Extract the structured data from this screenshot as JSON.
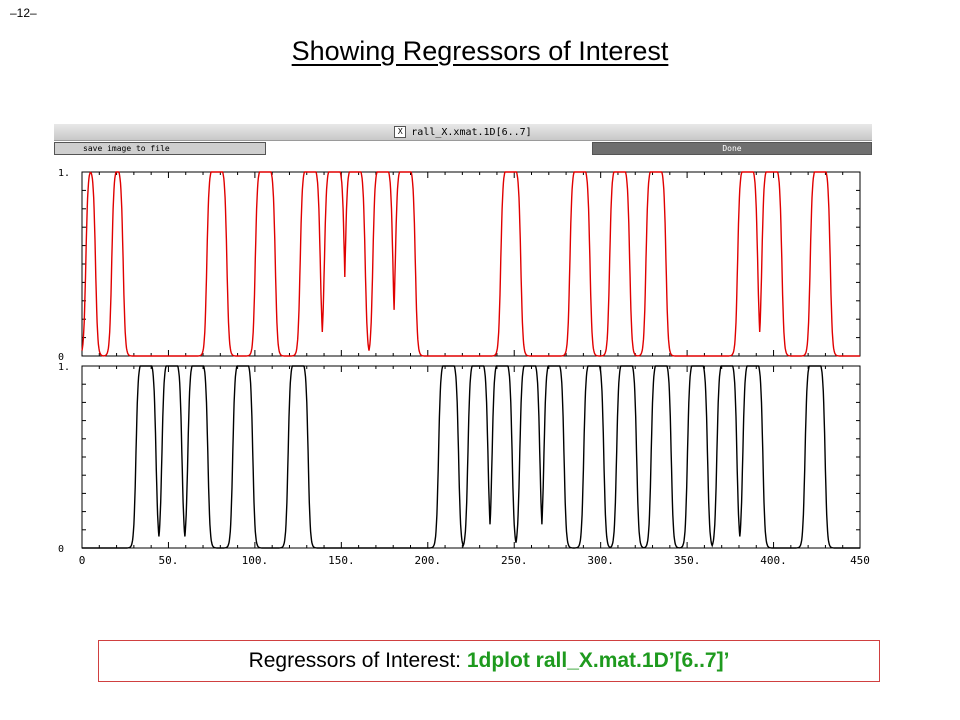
{
  "page_number": "–12–",
  "slide_title": "Showing Regressors of Interest",
  "window": {
    "title": "rall_X.xmat.1D[6..7]",
    "icon_glyph": "X",
    "save_button": "save image to file",
    "done_button": "Done"
  },
  "caption": {
    "label": "Regressors of Interest: ",
    "command": "1dplot rall_X.mat.1D’[6..7]’"
  },
  "chart_data": [
    {
      "type": "line",
      "series": [
        {
          "color": "#e00000",
          "pulses": [
            [
              0,
              10
            ],
            [
              15,
              26
            ],
            [
              70,
              86
            ],
            [
              98,
              114
            ],
            [
              124,
              140
            ],
            [
              138,
              154
            ],
            [
              150,
              166
            ],
            [
              166,
              182
            ],
            [
              179,
              195
            ],
            [
              240,
              256
            ],
            [
              280,
              296
            ],
            [
              303,
              319
            ],
            [
              324,
              340
            ],
            [
              377,
              393
            ],
            [
              391,
              407
            ],
            [
              419,
              435
            ]
          ]
        }
      ],
      "xlim": [
        0,
        450
      ],
      "ylim": [
        0,
        1
      ],
      "ytick_labels": [
        "0",
        "1."
      ]
    },
    {
      "type": "line",
      "series": [
        {
          "color": "#000000",
          "pulses": [
            [
              29,
              45
            ],
            [
              44,
              60
            ],
            [
              59,
              75
            ],
            [
              85,
              101
            ],
            [
              117,
              133
            ],
            [
              204,
              220
            ],
            [
              221,
              237
            ],
            [
              235,
              251
            ],
            [
              251,
              267
            ],
            [
              265,
              281
            ],
            [
              288,
              304
            ],
            [
              307,
              323
            ],
            [
              327,
              343
            ],
            [
              348,
              364
            ],
            [
              365,
              381
            ],
            [
              380,
              396
            ],
            [
              416,
              432
            ]
          ]
        }
      ],
      "xlim": [
        0,
        450
      ],
      "ylim": [
        0,
        1
      ],
      "ytick_labels": [
        "0",
        "1."
      ],
      "xtick_labels": [
        "0",
        "50.",
        "100.",
        "150.",
        "200.",
        "250.",
        "300.",
        "350.",
        "400.",
        "450"
      ]
    }
  ]
}
